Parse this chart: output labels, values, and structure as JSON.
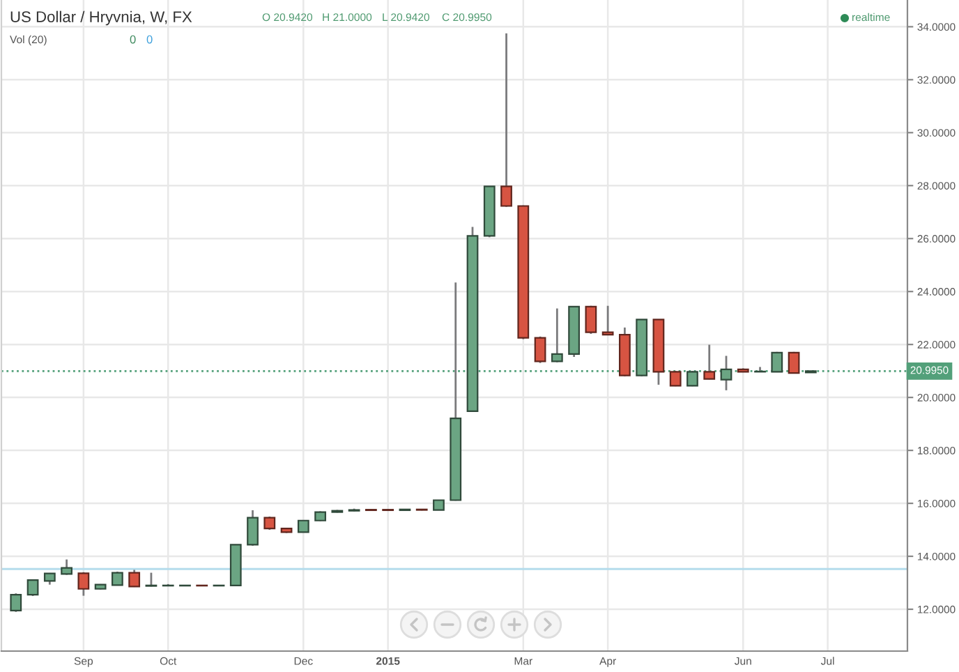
{
  "chart_data": {
    "type": "candlestick",
    "title": "US Dollar / Hryvnia, W, FX",
    "annotations": [
      "O 20.9420",
      "H 21.0000",
      "L 20.9420",
      "C 20.9950",
      "Vol (20)",
      "0",
      "0",
      "realtime"
    ],
    "x": [
      "2014-08-04",
      "2014-08-11",
      "2014-08-18",
      "2014-08-25",
      "2014-09-01",
      "2014-09-08",
      "2014-09-15",
      "2014-09-22",
      "2014-09-29",
      "2014-10-06",
      "2014-10-13",
      "2014-10-20",
      "2014-10-27",
      "2014-11-03",
      "2014-11-10",
      "2014-11-17",
      "2014-11-24",
      "2014-12-01",
      "2014-12-08",
      "2014-12-15",
      "2014-12-22",
      "2014-12-29",
      "2015-01-05",
      "2015-01-12",
      "2015-01-19",
      "2015-01-26",
      "2015-02-02",
      "2015-02-09",
      "2015-02-16",
      "2015-02-23",
      "2015-03-02",
      "2015-03-09",
      "2015-03-16",
      "2015-03-23",
      "2015-03-30",
      "2015-04-06",
      "2015-04-13",
      "2015-04-20",
      "2015-04-27",
      "2015-05-04",
      "2015-05-11",
      "2015-05-18",
      "2015-05-25",
      "2015-06-01",
      "2015-06-08",
      "2015-06-15",
      "2015-06-22",
      "2015-06-29"
    ],
    "ohlc": [
      [
        11.95,
        12.6,
        11.9,
        12.55
      ],
      [
        12.55,
        13.1,
        12.5,
        13.1
      ],
      [
        13.07,
        13.37,
        12.93,
        13.35
      ],
      [
        13.33,
        13.88,
        13.3,
        13.56
      ],
      [
        13.36,
        13.4,
        12.51,
        12.77
      ],
      [
        12.77,
        12.95,
        12.75,
        12.93
      ],
      [
        12.91,
        13.42,
        12.9,
        13.38
      ],
      [
        13.38,
        13.49,
        12.84,
        12.86
      ],
      [
        12.88,
        13.38,
        12.86,
        12.9
      ],
      [
        12.89,
        12.95,
        12.87,
        12.9
      ],
      [
        12.89,
        12.91,
        12.88,
        12.9
      ],
      [
        12.9,
        12.91,
        12.88,
        12.89
      ],
      [
        12.89,
        12.91,
        12.88,
        12.9
      ],
      [
        12.9,
        14.45,
        12.88,
        14.44
      ],
      [
        14.44,
        15.74,
        14.4,
        15.46
      ],
      [
        15.46,
        15.5,
        15.0,
        15.05
      ],
      [
        15.05,
        15.08,
        14.88,
        14.91
      ],
      [
        14.91,
        15.37,
        14.9,
        15.35
      ],
      [
        15.35,
        15.7,
        15.33,
        15.67
      ],
      [
        15.67,
        15.75,
        15.65,
        15.72
      ],
      [
        15.72,
        15.8,
        15.7,
        15.75
      ],
      [
        15.76,
        15.78,
        15.72,
        15.74
      ],
      [
        15.76,
        15.78,
        15.72,
        15.74
      ],
      [
        15.74,
        15.79,
        15.72,
        15.77
      ],
      [
        15.77,
        15.79,
        15.73,
        15.75
      ],
      [
        15.75,
        16.13,
        15.74,
        16.12
      ],
      [
        16.12,
        24.34,
        16.1,
        19.21
      ],
      [
        19.48,
        26.44,
        19.45,
        26.1
      ],
      [
        26.1,
        27.97,
        26.05,
        27.97
      ],
      [
        27.97,
        33.75,
        27.2,
        27.23
      ],
      [
        27.23,
        27.25,
        22.2,
        22.25
      ],
      [
        22.25,
        22.3,
        21.3,
        21.36
      ],
      [
        21.36,
        23.36,
        21.33,
        21.64
      ],
      [
        21.64,
        23.45,
        21.53,
        23.43
      ],
      [
        23.43,
        23.46,
        22.4,
        22.46
      ],
      [
        22.46,
        23.46,
        22.35,
        22.37
      ],
      [
        22.37,
        22.64,
        20.8,
        20.83
      ],
      [
        20.83,
        22.95,
        20.8,
        22.94
      ],
      [
        22.94,
        22.95,
        20.48,
        20.97
      ],
      [
        20.97,
        21.0,
        20.42,
        20.44
      ],
      [
        20.44,
        21.0,
        20.42,
        20.97
      ],
      [
        20.97,
        21.99,
        20.68,
        20.7
      ],
      [
        20.67,
        21.57,
        20.27,
        21.06
      ],
      [
        21.06,
        21.1,
        20.95,
        20.97
      ],
      [
        20.97,
        21.15,
        20.96,
        20.98
      ],
      [
        20.97,
        21.72,
        20.95,
        21.69
      ],
      [
        21.69,
        21.72,
        20.9,
        20.92
      ],
      [
        20.942,
        21.0,
        20.942,
        20.995
      ]
    ],
    "colors": [
      "#6ba583",
      "#6ba583",
      "#6ba583",
      "#6ba583",
      "#d75442",
      "#6ba583",
      "#6ba583",
      "#d75442",
      "#6ba583",
      "#6ba583",
      "#6ba583",
      "#d75442",
      "#6ba583",
      "#6ba583",
      "#6ba583",
      "#d75442",
      "#d75442",
      "#6ba583",
      "#6ba583",
      "#6ba583",
      "#6ba583",
      "#d75442",
      "#d75442",
      "#6ba583",
      "#d75442",
      "#6ba583",
      "#6ba583",
      "#6ba583",
      "#6ba583",
      "#d75442",
      "#d75442",
      "#d75442",
      "#6ba583",
      "#6ba583",
      "#d75442",
      "#d75442",
      "#d75442",
      "#6ba583",
      "#d75442",
      "#d75442",
      "#6ba583",
      "#d75442",
      "#6ba583",
      "#d75442",
      "#6ba583",
      "#6ba583",
      "#d75442",
      "#6ba583"
    ],
    "xlim": [
      "2014-07-29",
      "2015-08-08"
    ],
    "xticks": [
      {
        "value": "2014-09-01",
        "label": "Sep"
      },
      {
        "value": "2014-10-06",
        "label": "Oct"
      },
      {
        "value": "2014-12-01",
        "label": "Dec"
      },
      {
        "value": "2015-01-05",
        "label": "2015"
      },
      {
        "value": "2015-03-02",
        "label": "Mar"
      },
      {
        "value": "2015-04-06",
        "label": "Apr"
      },
      {
        "value": "2015-06-01",
        "label": "Jun"
      },
      {
        "value": "2015-07-06",
        "label": "Jul"
      }
    ],
    "ylim": [
      10.42,
      35.01
    ],
    "yticks": [
      {
        "value": 12,
        "label": "12.0000"
      },
      {
        "value": 14,
        "label": "14.0000"
      },
      {
        "value": 16,
        "label": "16.0000"
      },
      {
        "value": 18,
        "label": "18.0000"
      },
      {
        "value": 20,
        "label": "20.0000"
      },
      {
        "value": 22,
        "label": "22.0000"
      },
      {
        "value": 24,
        "label": "24.0000"
      },
      {
        "value": 26,
        "label": "26.0000"
      },
      {
        "value": 28,
        "label": "28.0000"
      },
      {
        "value": 30,
        "label": "30.0000"
      },
      {
        "value": 32,
        "label": "32.0000"
      },
      {
        "value": 34,
        "label": "34.0000"
      }
    ],
    "ref_lines": [
      {
        "axis": "y",
        "value": 13.52,
        "color": "#b5dcec",
        "line_style": "solid"
      },
      {
        "axis": "y",
        "value": 20.995,
        "label": "20.9950",
        "color": "#53a07a",
        "line_style": "dotted"
      }
    ],
    "grid": true
  }
}
